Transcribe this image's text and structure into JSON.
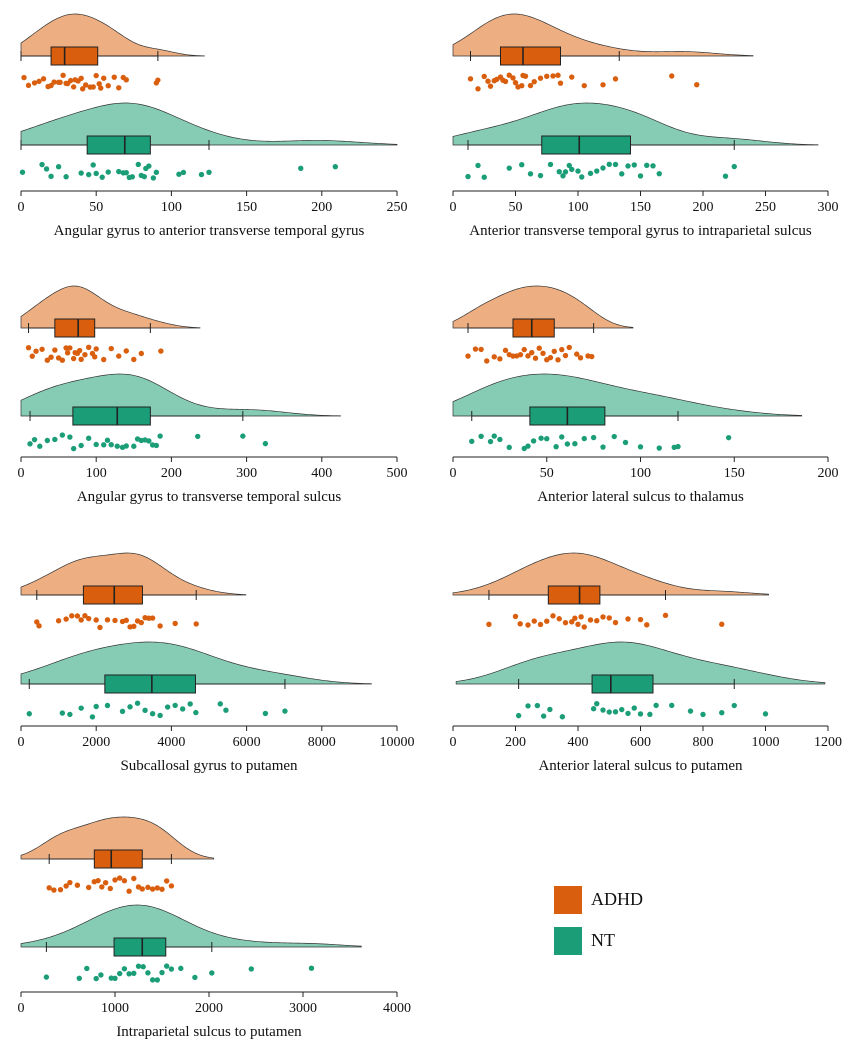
{
  "legend": {
    "items": [
      {
        "label": "ADHD",
        "color": "#D95F0E"
      },
      {
        "label": "NT",
        "color": "#1B9E77"
      }
    ],
    "placement": "bottom-right"
  },
  "colors": {
    "adhd_fill": "#EDAE82",
    "adhd_box": "#D95F0E",
    "adhd_point": "#D95F0E",
    "nt_fill": "#86CCB5",
    "nt_box": "#1B9E77",
    "nt_point": "#1B9E77"
  },
  "chart_data": [
    {
      "type": "raincloud",
      "xlabel": "Angular gyrus to anterior transverse temporal gyrus",
      "xlim": [
        0,
        250
      ],
      "ticks": [
        0,
        50,
        100,
        150,
        200,
        250
      ],
      "grid": false,
      "series": [
        {
          "name": "ADHD",
          "box": {
            "whisker_low": 0,
            "q1": 20,
            "median": 29,
            "q3": 51,
            "whisker_high": 91
          },
          "density_peak": 22,
          "density_extent": [
            0,
            122
          ],
          "points": [
            2,
            5,
            9,
            12,
            15,
            18,
            20,
            22,
            25,
            26,
            28,
            30,
            31,
            33,
            35,
            36,
            38,
            40,
            41,
            43,
            46,
            48,
            50,
            52,
            53,
            55,
            58,
            62,
            65,
            68,
            70,
            90,
            91
          ]
        },
        {
          "name": "NT",
          "box": {
            "whisker_low": 0,
            "q1": 44,
            "median": 69,
            "q3": 86,
            "whisker_high": 125
          },
          "density_peak": 74,
          "density_extent": [
            0,
            250
          ],
          "points": [
            1,
            14,
            17,
            20,
            25,
            30,
            40,
            45,
            48,
            50,
            54,
            58,
            65,
            68,
            70,
            72,
            74,
            78,
            80,
            82,
            83,
            85,
            88,
            90,
            105,
            108,
            120,
            125,
            186,
            209
          ]
        }
      ]
    },
    {
      "type": "raincloud",
      "xlabel": "Anterior transverse temporal gyrus to intraparietal sulcus",
      "xlim": [
        0,
        300
      ],
      "ticks": [
        0,
        50,
        100,
        150,
        200,
        250,
        300
      ],
      "grid": false,
      "series": [
        {
          "name": "ADHD",
          "box": {
            "whisker_low": 14,
            "q1": 38,
            "median": 56,
            "q3": 86,
            "whisker_high": 133
          },
          "density_peak": 44,
          "density_extent": [
            0,
            240
          ],
          "points": [
            14,
            20,
            25,
            28,
            30,
            33,
            35,
            38,
            40,
            42,
            45,
            48,
            50,
            52,
            55,
            56,
            58,
            62,
            65,
            70,
            75,
            80,
            84,
            86,
            95,
            105,
            120,
            130,
            175,
            195
          ]
        },
        {
          "name": "NT",
          "box": {
            "whisker_low": 12,
            "q1": 71,
            "median": 101,
            "q3": 142,
            "whisker_high": 225
          },
          "density_peak": 98,
          "density_extent": [
            0,
            292
          ],
          "points": [
            12,
            20,
            25,
            45,
            55,
            62,
            70,
            78,
            85,
            88,
            90,
            93,
            95,
            100,
            103,
            110,
            115,
            120,
            125,
            130,
            135,
            140,
            145,
            150,
            155,
            160,
            165,
            218,
            225
          ]
        }
      ]
    },
    {
      "type": "raincloud",
      "xlabel": "Angular gyrus to transverse temporal sulcus",
      "xlim": [
        0,
        500
      ],
      "ticks": [
        0,
        100,
        200,
        300,
        400,
        500
      ],
      "grid": false,
      "series": [
        {
          "name": "ADHD",
          "box": {
            "whisker_low": 10,
            "q1": 45,
            "median": 76,
            "q3": 98,
            "whisker_high": 172
          },
          "density_peak": 72,
          "density_extent": [
            0,
            238
          ],
          "points": [
            10,
            15,
            20,
            28,
            35,
            40,
            45,
            50,
            55,
            60,
            62,
            65,
            70,
            72,
            75,
            78,
            80,
            85,
            90,
            95,
            98,
            100,
            110,
            120,
            130,
            140,
            150,
            160,
            186
          ]
        },
        {
          "name": "NT",
          "box": {
            "whisker_low": 12,
            "q1": 69,
            "median": 128,
            "q3": 172,
            "whisker_high": 295
          },
          "density_peak": 150,
          "density_extent": [
            0,
            425
          ],
          "points": [
            12,
            18,
            25,
            35,
            45,
            55,
            65,
            70,
            80,
            90,
            100,
            110,
            115,
            120,
            128,
            135,
            140,
            150,
            155,
            160,
            165,
            170,
            175,
            180,
            185,
            235,
            295,
            325
          ]
        }
      ]
    },
    {
      "type": "raincloud",
      "xlabel": "Anterior lateral sulcus to thalamus",
      "xlim": [
        0,
        200
      ],
      "ticks": [
        0,
        50,
        100,
        150,
        200
      ],
      "grid": false,
      "series": [
        {
          "name": "ADHD",
          "box": {
            "whisker_low": 8,
            "q1": 32,
            "median": 42,
            "q3": 54,
            "whisker_high": 75
          },
          "density_peak": 38,
          "density_extent": [
            0,
            96
          ],
          "points": [
            8,
            12,
            15,
            18,
            22,
            25,
            28,
            30,
            32,
            34,
            36,
            38,
            40,
            42,
            44,
            46,
            48,
            50,
            52,
            54,
            56,
            58,
            60,
            62,
            66,
            68,
            72,
            74
          ]
        },
        {
          "name": "NT",
          "box": {
            "whisker_low": 10,
            "q1": 41,
            "median": 61,
            "q3": 81,
            "whisker_high": 120
          },
          "density_peak": 58,
          "density_extent": [
            0,
            186
          ],
          "points": [
            10,
            15,
            20,
            22,
            25,
            30,
            38,
            40,
            43,
            47,
            50,
            55,
            58,
            61,
            65,
            70,
            75,
            80,
            86,
            92,
            100,
            110,
            118,
            120,
            147
          ]
        }
      ]
    },
    {
      "type": "raincloud",
      "xlabel": "Subcallosal gyrus to putamen",
      "xlim": [
        0,
        10000
      ],
      "ticks": [
        0,
        2000,
        4000,
        6000,
        8000,
        10000
      ],
      "grid": false,
      "series": [
        {
          "name": "ADHD",
          "box": {
            "whisker_low": 420,
            "q1": 1660,
            "median": 2480,
            "q3": 3230,
            "whisker_high": 4660
          },
          "density_peak": 3100,
          "density_extent": [
            0,
            5980
          ],
          "points": [
            420,
            480,
            1000,
            1200,
            1350,
            1500,
            1600,
            1700,
            1800,
            2000,
            2100,
            2300,
            2500,
            2700,
            2800,
            2900,
            3000,
            3100,
            3200,
            3300,
            3400,
            3500,
            3700,
            4100,
            4660
          ]
        },
        {
          "name": "NT",
          "box": {
            "whisker_low": 220,
            "q1": 2230,
            "median": 3480,
            "q3": 4640,
            "whisker_high": 7020
          },
          "density_peak": 3800,
          "density_extent": [
            0,
            9320
          ],
          "points": [
            220,
            1100,
            1300,
            1600,
            1900,
            2000,
            2300,
            2700,
            2900,
            3100,
            3300,
            3500,
            3700,
            3900,
            4100,
            4300,
            4500,
            4650,
            5300,
            5450,
            6500,
            7020
          ]
        }
      ]
    },
    {
      "type": "raincloud",
      "xlabel": "Anterior lateral sulcus to putamen",
      "xlim": [
        0,
        1200
      ],
      "ticks": [
        0,
        200,
        400,
        600,
        800,
        1000,
        1200
      ],
      "grid": false,
      "series": [
        {
          "name": "ADHD",
          "box": {
            "whisker_low": 115,
            "q1": 305,
            "median": 405,
            "q3": 470,
            "whisker_high": 680
          },
          "density_peak": 400,
          "density_extent": [
            0,
            1010
          ],
          "points": [
            115,
            200,
            215,
            240,
            260,
            280,
            300,
            320,
            340,
            360,
            380,
            390,
            400,
            410,
            420,
            440,
            460,
            480,
            500,
            520,
            560,
            600,
            620,
            680,
            860
          ]
        },
        {
          "name": "NT",
          "box": {
            "whisker_low": 210,
            "q1": 445,
            "median": 505,
            "q3": 640,
            "whisker_high": 900
          },
          "density_peak": 495,
          "density_extent": [
            10,
            1190
          ],
          "points": [
            210,
            240,
            270,
            290,
            310,
            350,
            450,
            460,
            480,
            500,
            520,
            540,
            560,
            580,
            600,
            630,
            650,
            700,
            760,
            800,
            860,
            900,
            1000
          ]
        }
      ]
    },
    {
      "type": "raincloud",
      "xlabel": "Intraparietal sulcus to putamen",
      "xlim": [
        0,
        4000
      ],
      "ticks": [
        0,
        1000,
        2000,
        3000,
        4000
      ],
      "grid": false,
      "series": [
        {
          "name": "ADHD",
          "box": {
            "whisker_low": 300,
            "q1": 780,
            "median": 960,
            "q3": 1290,
            "whisker_high": 1600
          },
          "density_peak": 970,
          "density_extent": [
            0,
            2050
          ],
          "points": [
            300,
            350,
            420,
            480,
            520,
            600,
            720,
            780,
            820,
            860,
            900,
            950,
            1000,
            1050,
            1100,
            1150,
            1200,
            1250,
            1290,
            1350,
            1400,
            1450,
            1500,
            1550,
            1600
          ]
        },
        {
          "name": "NT",
          "box": {
            "whisker_low": 270,
            "q1": 990,
            "median": 1290,
            "q3": 1540,
            "whisker_high": 2030
          },
          "density_peak": 1280,
          "density_extent": [
            0,
            3620
          ],
          "points": [
            270,
            620,
            700,
            800,
            850,
            960,
            1000,
            1050,
            1100,
            1150,
            1200,
            1250,
            1300,
            1350,
            1400,
            1450,
            1500,
            1550,
            1600,
            1700,
            1850,
            2030,
            2450,
            3090
          ]
        }
      ]
    }
  ]
}
